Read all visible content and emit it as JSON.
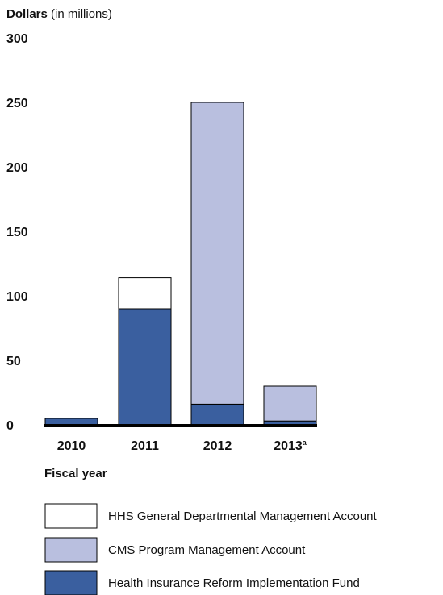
{
  "chart_data": {
    "type": "bar",
    "stacked": true,
    "ylabel_bold": "Dollars",
    "ylabel_rest": " (in millions)",
    "xlabel": "Fiscal year",
    "ylim": [
      0,
      300
    ],
    "yticks": [
      0,
      50,
      100,
      150,
      200,
      250,
      300
    ],
    "categories": [
      {
        "label": "2010",
        "sup": ""
      },
      {
        "label": "2011",
        "sup": ""
      },
      {
        "label": "2012",
        "sup": ""
      },
      {
        "label": "2013",
        "sup": "a"
      }
    ],
    "series": [
      {
        "name": "Health Insurance Reform Implementation Fund",
        "color": "#3a5f9f",
        "values": [
          5,
          90,
          16,
          3
        ]
      },
      {
        "name": "CMS Program Management Account",
        "color": "#b9bfdf",
        "values": [
          0,
          0,
          234,
          27
        ]
      },
      {
        "name": "HHS General Departmental Management Account",
        "color": "#ffffff",
        "values": [
          0,
          24,
          0,
          0
        ]
      }
    ],
    "legend_order": [
      2,
      1,
      0
    ],
    "legend_position": "bottom",
    "grid": false
  }
}
